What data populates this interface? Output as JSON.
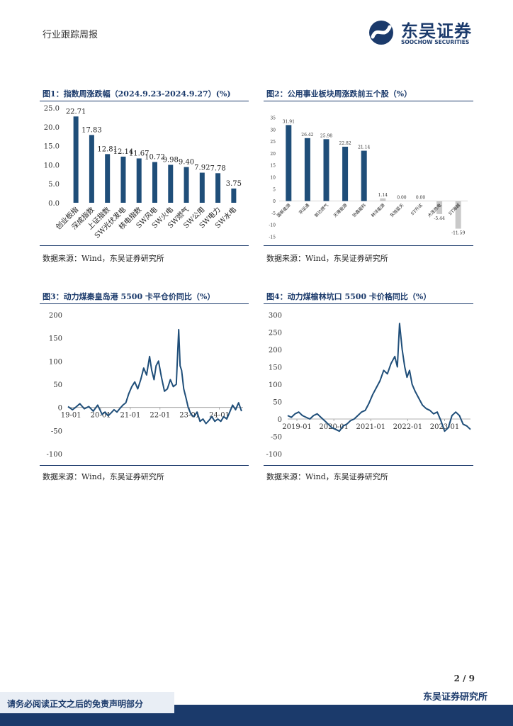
{
  "header": {
    "left_label": "行业跟踪周报",
    "logo_cn": "东吴证券",
    "logo_en": "SOOCHOW SECURITIES"
  },
  "colors": {
    "bar": "#1f4e79",
    "neg_bar": "#c9c9c9",
    "line": "#1f4e79",
    "brand": "#1b3a6b"
  },
  "figures": [
    {
      "title": "图1：指数周涨跌幅（2024.9.23-2024.9.27）(%)",
      "source": "数据来源：Wind，东吴证券研究所"
    },
    {
      "title": "图2：公用事业板块周涨跌前五个股（%）",
      "source": "数据来源：Wind，东吴证券研究所"
    },
    {
      "title": "图3：动力煤秦皇岛港 5500 卡平仓价同比（%）",
      "source": "数据来源：Wind，东吴证券研究所"
    },
    {
      "title": "图4：动力煤榆林坑口 5500 卡价格同比（%）",
      "source": "数据来源：Wind，东吴证券研究所"
    }
  ],
  "chart_data": [
    {
      "type": "bar",
      "title": "指数周涨跌幅（2024.9.23-2024.9.27）(%)",
      "categories": [
        "创业板指",
        "深成指数",
        "上证指数",
        "SW光伏发电",
        "核电指数",
        "SW风电",
        "SW火电",
        "SW燃气",
        "SW公用",
        "SW电力",
        "SW水电"
      ],
      "values": [
        22.71,
        17.83,
        12.81,
        12.14,
        11.67,
        10.72,
        9.98,
        9.4,
        7.92,
        7.78,
        3.75
      ],
      "labels": [
        "22.71",
        "17.83",
        "12.81",
        "12.14",
        "11.67",
        "10.72",
        "9.98",
        "9.40",
        "7.92",
        "7.78",
        "3.75"
      ],
      "yticks": [
        "0.0",
        "5.0",
        "10.0",
        "15.0",
        "20.0",
        "25.0"
      ],
      "ylim": [
        0,
        25
      ]
    },
    {
      "type": "bar",
      "title": "公用事业板块周涨跌前五个股（%）",
      "categories": [
        "国新能源",
        "京运通",
        "新达燃气",
        "天壕能源",
        "协鑫能科",
        "林洋能源",
        "东旭蓝天",
        "ST升达",
        "大连热电",
        "ST海越"
      ],
      "values": [
        31.91,
        26.42,
        25.98,
        22.82,
        21.14,
        1.14,
        0.0,
        0.0,
        -5.44,
        -11.59
      ],
      "labels": [
        "31.91",
        "26.42",
        "25.98",
        "22.82",
        "21.14",
        "1.14",
        "0.00",
        "0.00",
        "-5.44",
        "-11.59"
      ],
      "yticks": [
        "-15",
        "-10",
        "-5",
        "0",
        "5",
        "10",
        "15",
        "20",
        "25",
        "30",
        "35"
      ],
      "ylim": [
        -15,
        35
      ]
    },
    {
      "type": "line",
      "title": "动力煤秦皇岛港 5500 卡平仓价同比（%）",
      "xticks": [
        "19-01",
        "20-01",
        "21-01",
        "22-01",
        "23-01",
        "24-01"
      ],
      "yticks": [
        "-100",
        "-50",
        "0",
        "50",
        "100",
        "150",
        "200"
      ],
      "ylim": [
        -100,
        200
      ],
      "xlim": [
        2018.9,
        2024.8
      ],
      "series": [
        {
          "name": "同比",
          "x": [
            2018.9,
            2019.05,
            2019.15,
            2019.3,
            2019.45,
            2019.6,
            2019.75,
            2019.9,
            2020.05,
            2020.15,
            2020.25,
            2020.35,
            2020.45,
            2020.55,
            2020.65,
            2020.75,
            2020.85,
            2020.95,
            2021.05,
            2021.15,
            2021.25,
            2021.35,
            2021.45,
            2021.55,
            2021.65,
            2021.72,
            2021.8,
            2021.87,
            2021.95,
            2022.05,
            2022.15,
            2022.25,
            2022.35,
            2022.45,
            2022.55,
            2022.63,
            2022.68,
            2022.73,
            2022.8,
            2022.88,
            2022.95,
            2023.05,
            2023.15,
            2023.25,
            2023.35,
            2023.45,
            2023.55,
            2023.65,
            2023.75,
            2023.85,
            2023.95,
            2024.05,
            2024.15,
            2024.25,
            2024.35,
            2024.45,
            2024.55,
            2024.65,
            2024.75
          ],
          "values": [
            2,
            -5,
            0,
            8,
            -3,
            2,
            -8,
            5,
            -15,
            -10,
            -18,
            -12,
            -5,
            -10,
            -2,
            5,
            10,
            30,
            45,
            55,
            40,
            60,
            85,
            70,
            110,
            80,
            60,
            90,
            100,
            65,
            35,
            40,
            60,
            45,
            50,
            168,
            90,
            80,
            40,
            20,
            0,
            -15,
            -20,
            -10,
            -30,
            -25,
            -35,
            -28,
            -20,
            -30,
            -25,
            -30,
            -20,
            -25,
            -10,
            5,
            -5,
            10,
            -8
          ]
        }
      ]
    },
    {
      "type": "line",
      "title": "动力煤榆林坑口 5500 卡价格同比（%）",
      "xticks": [
        "2019-01",
        "2020-01",
        "2021-01",
        "2022-01",
        "2023-01"
      ],
      "yticks": [
        "-100",
        "-50",
        "0",
        "50",
        "100",
        "150",
        "200",
        "250",
        "300"
      ],
      "ylim": [
        -100,
        300
      ],
      "xlim": [
        2018.75,
        2023.7
      ],
      "series": [
        {
          "name": "同比",
          "x": [
            2018.75,
            2018.85,
            2018.95,
            2019.05,
            2019.15,
            2019.25,
            2019.35,
            2019.45,
            2019.55,
            2019.65,
            2019.75,
            2019.85,
            2019.95,
            2020.05,
            2020.15,
            2020.25,
            2020.35,
            2020.45,
            2020.55,
            2020.65,
            2020.75,
            2020.85,
            2020.95,
            2021.05,
            2021.15,
            2021.25,
            2021.35,
            2021.45,
            2021.55,
            2021.65,
            2021.72,
            2021.78,
            2021.85,
            2021.92,
            2021.98,
            2022.05,
            2022.12,
            2022.2,
            2022.3,
            2022.4,
            2022.5,
            2022.6,
            2022.7,
            2022.8,
            2022.9,
            2023.0,
            2023.1,
            2023.2,
            2023.3,
            2023.4,
            2023.5,
            2023.6,
            2023.7
          ],
          "values": [
            10,
            5,
            15,
            20,
            10,
            5,
            0,
            10,
            15,
            5,
            -5,
            -15,
            -25,
            -30,
            -35,
            -20,
            -15,
            -5,
            0,
            10,
            20,
            25,
            45,
            70,
            90,
            110,
            140,
            130,
            160,
            180,
            150,
            275,
            200,
            150,
            120,
            140,
            100,
            80,
            60,
            40,
            30,
            25,
            15,
            20,
            -5,
            -35,
            -25,
            10,
            20,
            10,
            -15,
            -20,
            -30
          ]
        }
      ]
    }
  ]
}
